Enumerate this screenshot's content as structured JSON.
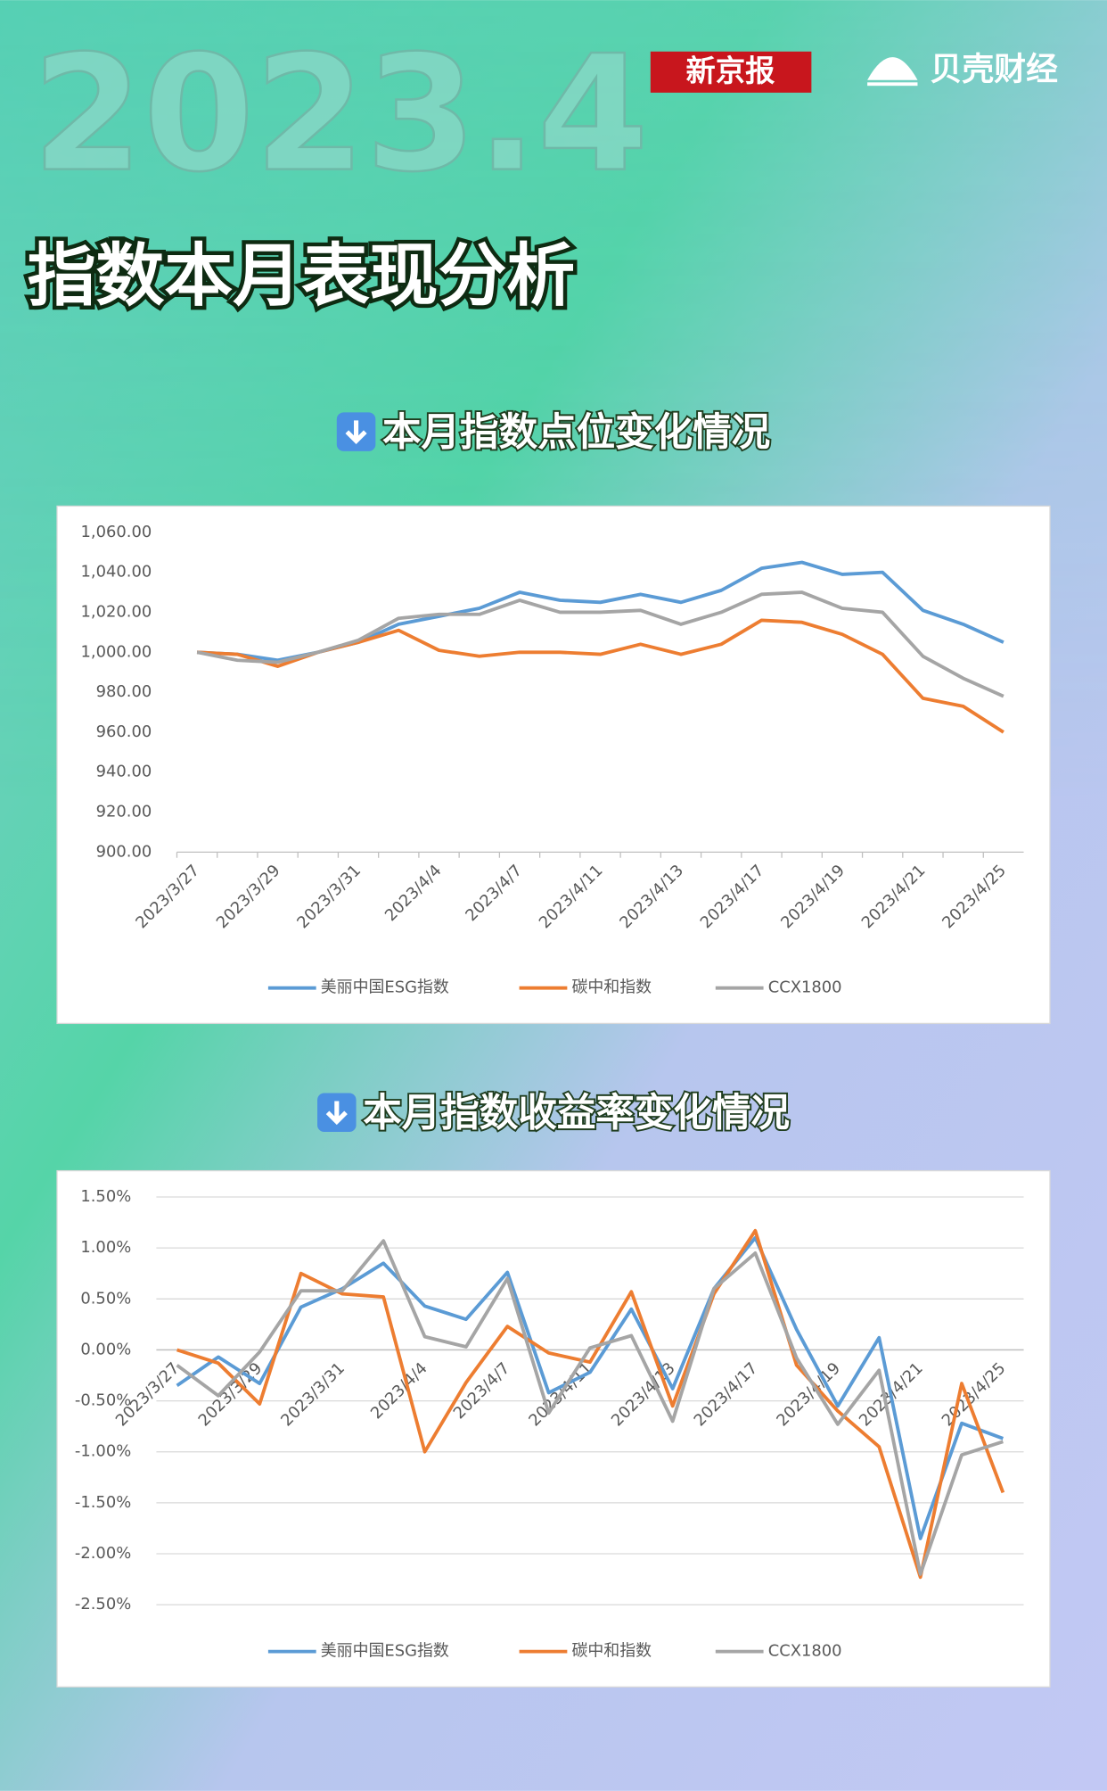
{
  "header": {
    "year": "2023.4",
    "brand1": "新京报",
    "brand2": "贝壳财经",
    "title": "指数本月表现分析"
  },
  "chart_data": [
    {
      "type": "line",
      "title": "本月指数点位变化情况",
      "categories": [
        "2023/3/27",
        null,
        "2023/3/29",
        null,
        "2023/3/31",
        null,
        "2023/4/4",
        null,
        "2023/4/7",
        null,
        "2023/4/11",
        null,
        "2023/4/13",
        null,
        "2023/4/17",
        null,
        "2023/4/19",
        null,
        "2023/4/21",
        null,
        "2023/4/25"
      ],
      "series": [
        {
          "name": "美丽中国ESG指数",
          "color": "#5b9bd5",
          "values": [
            1000,
            999,
            996,
            1000,
            1005,
            1014,
            1018,
            1022,
            1030,
            1026,
            1025,
            1029,
            1025,
            1031,
            1042,
            1045,
            1039,
            1040,
            1021,
            1014,
            1005
          ]
        },
        {
          "name": "碳中和指数",
          "color": "#ed7d31",
          "values": [
            1000,
            999,
            993,
            1000,
            1005,
            1011,
            1001,
            998,
            1000,
            1000,
            999,
            1004,
            999,
            1004,
            1016,
            1015,
            1009,
            999,
            977,
            973,
            960
          ]
        },
        {
          "name": "CCX1800",
          "color": "#a5a5a5",
          "values": [
            1000,
            996,
            995,
            1000,
            1006,
            1017,
            1019,
            1019,
            1026,
            1020,
            1020,
            1021,
            1014,
            1020,
            1029,
            1030,
            1022,
            1020,
            998,
            987,
            978
          ]
        }
      ],
      "ylim": [
        900,
        1060
      ],
      "yticks": [
        {
          "value": 900,
          "label": "900.00"
        },
        {
          "value": 920,
          "label": "920.00"
        },
        {
          "value": 940,
          "label": "940.00"
        },
        {
          "value": 960,
          "label": "960.00"
        },
        {
          "value": 980,
          "label": "980.00"
        },
        {
          "value": 1000,
          "label": "1,000.00"
        },
        {
          "value": 1020,
          "label": "1,020.00"
        },
        {
          "value": 1040,
          "label": "1,040.00"
        },
        {
          "value": 1060,
          "label": "1,060.00"
        }
      ],
      "grid": false,
      "legend": "bottom"
    },
    {
      "type": "line",
      "title": "本月指数收益率变化情况",
      "categories": [
        "2023/3/27",
        null,
        "2023/3/29",
        null,
        "2023/3/31",
        null,
        "2023/4/4",
        null,
        "2023/4/7",
        null,
        "2023/4/11",
        null,
        "2023/4/13",
        null,
        "2023/4/17",
        null,
        "2023/4/19",
        null,
        "2023/4/21",
        null,
        "2023/4/25"
      ],
      "series": [
        {
          "name": "美丽中国ESG指数",
          "color": "#5b9bd5",
          "values": [
            -0.35,
            -0.07,
            -0.33,
            0.42,
            0.6,
            0.85,
            0.43,
            0.3,
            0.76,
            -0.42,
            -0.22,
            0.4,
            -0.38,
            0.6,
            1.1,
            0.2,
            -0.55,
            0.12,
            -1.85,
            -0.72,
            -0.87
          ]
        },
        {
          "name": "碳中和指数",
          "color": "#ed7d31",
          "values": [
            0,
            -0.13,
            -0.53,
            0.75,
            0.55,
            0.52,
            -1,
            -0.32,
            0.23,
            -0.03,
            -0.12,
            0.57,
            -0.55,
            0.55,
            1.17,
            -0.15,
            -0.6,
            -0.95,
            -2.23,
            -0.33,
            -1.4
          ]
        },
        {
          "name": "CCX1800",
          "color": "#a5a5a5",
          "values": [
            -0.15,
            -0.45,
            -0.02,
            0.58,
            0.58,
            1.07,
            0.13,
            0.03,
            0.7,
            -0.62,
            0.02,
            0.14,
            -0.7,
            0.6,
            0.95,
            -0.08,
            -0.73,
            -0.2,
            -2.2,
            -1.03,
            -0.9
          ]
        }
      ],
      "ylim": [
        -2.5,
        1.5
      ],
      "yticks": [
        {
          "value": -2.5,
          "label": "-2.50%"
        },
        {
          "value": -2,
          "label": "-2.00%"
        },
        {
          "value": -1.5,
          "label": "-1.50%"
        },
        {
          "value": -1,
          "label": "-1.00%"
        },
        {
          "value": -0.5,
          "label": "-0.50%"
        },
        {
          "value": 0,
          "label": "0.00%"
        },
        {
          "value": 0.5,
          "label": "0.50%"
        },
        {
          "value": 1,
          "label": "1.00%"
        },
        {
          "value": 1.5,
          "label": "1.50%"
        }
      ],
      "grid": true,
      "legend": "bottom"
    }
  ]
}
